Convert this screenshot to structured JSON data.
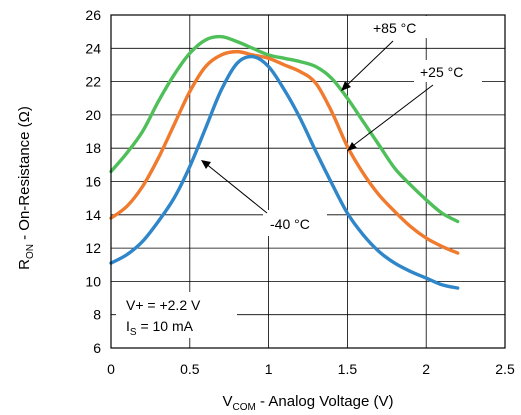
{
  "chart_data": {
    "type": "line",
    "title": "",
    "xlabel": {
      "main": "V",
      "sub": "COM",
      "rest": " - Analog Voltage (V)"
    },
    "ylabel": {
      "main": "R",
      "sub": "ON",
      "rest": " - On-Resistance (Ω)"
    },
    "xlim": [
      0,
      2.5
    ],
    "ylim": [
      6,
      26
    ],
    "xticks": [
      0,
      0.5,
      1,
      1.5,
      2,
      2.5
    ],
    "xtick_labels": [
      "0",
      "0.5",
      "1",
      "1.5",
      "2",
      "2.5"
    ],
    "yticks": [
      6,
      8,
      10,
      12,
      14,
      16,
      18,
      20,
      22,
      24,
      26
    ],
    "ytick_labels": [
      "6",
      "8",
      "10",
      "12",
      "14",
      "16",
      "18",
      "20",
      "22",
      "24",
      "26"
    ],
    "grid": true,
    "series": [
      {
        "name": "+85 °C",
        "color": "#4fbf5a",
        "x": [
          0,
          0.1,
          0.2,
          0.3,
          0.4,
          0.5,
          0.6,
          0.7,
          0.8,
          0.9,
          1.0,
          1.1,
          1.2,
          1.3,
          1.4,
          1.5,
          1.6,
          1.7,
          1.8,
          1.9,
          2.0,
          2.1,
          2.2
        ],
        "y": [
          16.6,
          17.7,
          19.0,
          20.8,
          22.4,
          23.7,
          24.5,
          24.7,
          24.4,
          24.0,
          23.6,
          23.4,
          23.2,
          22.9,
          22.2,
          21.0,
          19.6,
          18.2,
          16.8,
          15.8,
          14.9,
          14.1,
          13.6
        ]
      },
      {
        "name": "+25 °C",
        "color": "#f07a2e",
        "x": [
          0,
          0.1,
          0.2,
          0.3,
          0.4,
          0.5,
          0.6,
          0.7,
          0.8,
          0.9,
          1.0,
          1.1,
          1.2,
          1.3,
          1.4,
          1.5,
          1.6,
          1.7,
          1.8,
          1.9,
          2.0,
          2.1,
          2.2
        ],
        "y": [
          13.8,
          14.5,
          15.7,
          17.4,
          19.4,
          21.4,
          22.9,
          23.6,
          23.8,
          23.6,
          23.4,
          23.0,
          22.6,
          21.9,
          20.2,
          18.1,
          16.5,
          15.2,
          14.2,
          13.3,
          12.6,
          12.1,
          11.7
        ]
      },
      {
        "name": "-40 °C",
        "color": "#2f86c9",
        "x": [
          0,
          0.1,
          0.2,
          0.3,
          0.4,
          0.5,
          0.6,
          0.7,
          0.8,
          0.9,
          1.0,
          1.1,
          1.2,
          1.3,
          1.4,
          1.5,
          1.6,
          1.7,
          1.8,
          1.9,
          2.0,
          2.1,
          2.2
        ],
        "y": [
          11.1,
          11.6,
          12.4,
          13.6,
          15.0,
          16.9,
          19.2,
          21.5,
          23.1,
          23.5,
          22.9,
          21.5,
          19.8,
          17.8,
          15.9,
          14.1,
          12.8,
          11.8,
          11.1,
          10.6,
          10.2,
          9.8,
          9.6
        ]
      }
    ],
    "annotations": [
      {
        "text": "+85 °C",
        "series": "+85 °C"
      },
      {
        "text": "+25 °C",
        "series": "+25 °C"
      },
      {
        "text": "-40 °C",
        "series": "-40 °C"
      }
    ],
    "conditions": {
      "line1": "V+ = +2.2 V",
      "line2_main": "I",
      "line2_sub": "S",
      "line2_rest": " = 10 mA"
    }
  }
}
